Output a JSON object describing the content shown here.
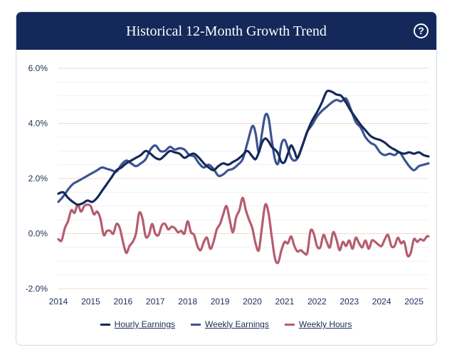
{
  "header": {
    "title": "Historical 12-Month Growth Trend",
    "help_glyph": "?"
  },
  "chart_data": {
    "type": "line",
    "title": "Historical 12-Month Growth Trend",
    "xlabel": "",
    "ylabel": "",
    "x_range": [
      2014,
      2025.45
    ],
    "ylim": [
      -2.0,
      6.0
    ],
    "y_ticks": [
      6.0,
      4.0,
      2.0,
      0.0,
      -2.0
    ],
    "y_tick_labels": [
      "6.0%",
      "4.0%",
      "2.0%",
      "0.0%",
      "-2.0%"
    ],
    "x_ticks": [
      2014,
      2015,
      2016,
      2017,
      2018,
      2019,
      2020,
      2021,
      2022,
      2023,
      2024,
      2025
    ],
    "x_tick_labels": [
      "2014",
      "2015",
      "2016",
      "2017",
      "2018",
      "2019",
      "2020",
      "2021",
      "2022",
      "2023",
      "2024",
      "2025"
    ],
    "grid": "horizontal",
    "legend_position": "bottom",
    "series": [
      {
        "name": "Hourly Earnings",
        "color": "#14295a",
        "x": [
          2014.0,
          2014.15,
          2014.3,
          2014.45,
          2014.6,
          2014.75,
          2014.9,
          2015.05,
          2015.2,
          2015.35,
          2015.5,
          2015.65,
          2015.8,
          2015.95,
          2016.1,
          2016.25,
          2016.4,
          2016.55,
          2016.7,
          2016.85,
          2017.0,
          2017.15,
          2017.3,
          2017.45,
          2017.6,
          2017.75,
          2017.9,
          2018.05,
          2018.2,
          2018.35,
          2018.5,
          2018.65,
          2018.8,
          2018.95,
          2019.1,
          2019.25,
          2019.4,
          2019.55,
          2019.7,
          2019.85,
          2020.0,
          2020.1,
          2020.2,
          2020.3,
          2020.4,
          2020.5,
          2020.6,
          2020.7,
          2020.8,
          2020.9,
          2021.0,
          2021.1,
          2021.2,
          2021.3,
          2021.4,
          2021.55,
          2021.7,
          2021.85,
          2022.0,
          2022.15,
          2022.3,
          2022.45,
          2022.6,
          2022.75,
          2022.9,
          2023.05,
          2023.2,
          2023.35,
          2023.5,
          2023.65,
          2023.8,
          2023.95,
          2024.1,
          2024.25,
          2024.4,
          2024.55,
          2024.7,
          2024.85,
          2025.0,
          2025.15,
          2025.3,
          2025.45
        ],
        "values": [
          1.45,
          1.5,
          1.3,
          1.15,
          1.05,
          1.1,
          1.2,
          1.15,
          1.3,
          1.55,
          1.8,
          2.05,
          2.3,
          2.4,
          2.55,
          2.65,
          2.75,
          2.85,
          3.0,
          2.9,
          2.75,
          2.7,
          2.85,
          3.0,
          2.95,
          2.9,
          2.75,
          2.85,
          2.9,
          2.75,
          2.55,
          2.4,
          2.3,
          2.45,
          2.55,
          2.5,
          2.6,
          2.7,
          2.85,
          3.0,
          2.8,
          2.7,
          2.95,
          3.3,
          3.45,
          3.35,
          3.15,
          3.05,
          2.9,
          2.6,
          2.6,
          2.9,
          3.2,
          3.0,
          2.75,
          3.2,
          3.7,
          4.1,
          4.4,
          4.75,
          5.15,
          5.15,
          5.05,
          5.0,
          4.75,
          4.45,
          4.2,
          3.95,
          3.75,
          3.55,
          3.45,
          3.4,
          3.3,
          3.15,
          3.05,
          2.95,
          2.9,
          2.95,
          2.9,
          2.95,
          2.85,
          2.8
        ]
      },
      {
        "name": "Weekly Earnings",
        "color": "#3c5491",
        "x": [
          2014.0,
          2014.15,
          2014.3,
          2014.45,
          2014.6,
          2014.75,
          2014.9,
          2015.05,
          2015.2,
          2015.35,
          2015.5,
          2015.65,
          2015.8,
          2015.95,
          2016.1,
          2016.25,
          2016.4,
          2016.55,
          2016.7,
          2016.85,
          2017.0,
          2017.15,
          2017.3,
          2017.45,
          2017.6,
          2017.75,
          2017.9,
          2018.05,
          2018.2,
          2018.35,
          2018.5,
          2018.65,
          2018.8,
          2018.95,
          2019.1,
          2019.25,
          2019.4,
          2019.55,
          2019.7,
          2019.85,
          2020.0,
          2020.1,
          2020.2,
          2020.3,
          2020.4,
          2020.5,
          2020.6,
          2020.7,
          2020.8,
          2020.9,
          2021.0,
          2021.1,
          2021.2,
          2021.3,
          2021.4,
          2021.55,
          2021.7,
          2021.85,
          2022.0,
          2022.15,
          2022.3,
          2022.45,
          2022.6,
          2022.75,
          2022.9,
          2023.05,
          2023.2,
          2023.35,
          2023.5,
          2023.65,
          2023.8,
          2023.95,
          2024.1,
          2024.25,
          2024.4,
          2024.55,
          2024.7,
          2024.85,
          2025.0,
          2025.15,
          2025.3,
          2025.45
        ],
        "values": [
          1.15,
          1.35,
          1.6,
          1.8,
          1.9,
          2.0,
          2.1,
          2.2,
          2.3,
          2.4,
          2.35,
          2.3,
          2.25,
          2.5,
          2.65,
          2.55,
          2.45,
          2.55,
          2.7,
          3.05,
          3.2,
          3.0,
          3.0,
          3.15,
          3.05,
          3.1,
          3.05,
          2.85,
          2.8,
          2.55,
          2.4,
          2.5,
          2.35,
          2.1,
          2.15,
          2.3,
          2.35,
          2.5,
          2.7,
          3.3,
          3.9,
          3.65,
          2.95,
          3.65,
          4.3,
          4.2,
          3.4,
          2.7,
          2.55,
          3.25,
          3.4,
          3.1,
          2.75,
          2.65,
          2.75,
          3.2,
          3.7,
          3.95,
          4.25,
          4.45,
          4.6,
          4.75,
          4.85,
          4.8,
          4.9,
          4.5,
          4.05,
          3.85,
          3.5,
          3.3,
          3.2,
          2.95,
          2.85,
          2.9,
          2.85,
          2.95,
          2.7,
          2.45,
          2.3,
          2.45,
          2.5,
          2.55
        ]
      },
      {
        "name": "Weekly Hours",
        "color": "#b65c6f",
        "x": [
          2014.0,
          2014.1,
          2014.2,
          2014.3,
          2014.4,
          2014.5,
          2014.6,
          2014.7,
          2014.8,
          2014.9,
          2015.0,
          2015.1,
          2015.2,
          2015.3,
          2015.4,
          2015.5,
          2015.6,
          2015.7,
          2015.8,
          2015.9,
          2016.0,
          2016.1,
          2016.2,
          2016.3,
          2016.4,
          2016.5,
          2016.6,
          2016.7,
          2016.8,
          2016.9,
          2017.0,
          2017.1,
          2017.2,
          2017.3,
          2017.4,
          2017.5,
          2017.6,
          2017.7,
          2017.8,
          2017.9,
          2018.0,
          2018.1,
          2018.2,
          2018.3,
          2018.4,
          2018.5,
          2018.6,
          2018.7,
          2018.8,
          2018.9,
          2019.0,
          2019.1,
          2019.2,
          2019.3,
          2019.4,
          2019.5,
          2019.6,
          2019.7,
          2019.8,
          2019.9,
          2020.0,
          2020.1,
          2020.2,
          2020.3,
          2020.4,
          2020.5,
          2020.6,
          2020.7,
          2020.8,
          2020.9,
          2021.0,
          2021.1,
          2021.2,
          2021.3,
          2021.4,
          2021.5,
          2021.6,
          2021.7,
          2021.8,
          2021.9,
          2022.0,
          2022.1,
          2022.2,
          2022.3,
          2022.4,
          2022.5,
          2022.6,
          2022.7,
          2022.8,
          2022.9,
          2023.0,
          2023.1,
          2023.2,
          2023.3,
          2023.4,
          2023.5,
          2023.6,
          2023.7,
          2023.8,
          2023.9,
          2024.0,
          2024.1,
          2024.2,
          2024.3,
          2024.4,
          2024.5,
          2024.6,
          2024.7,
          2024.8,
          2024.9,
          2025.0,
          2025.1,
          2025.2,
          2025.3,
          2025.4,
          2025.45
        ],
        "values": [
          -0.2,
          -0.25,
          0.2,
          0.45,
          0.85,
          0.75,
          1.05,
          0.8,
          1.0,
          1.05,
          1.0,
          0.7,
          0.8,
          0.55,
          -0.05,
          0.1,
          0.1,
          0.0,
          0.35,
          0.2,
          -0.3,
          -0.7,
          -0.45,
          -0.3,
          0.0,
          0.75,
          0.55,
          -0.1,
          -0.05,
          0.35,
          0.0,
          -0.05,
          0.3,
          0.35,
          0.15,
          0.25,
          0.2,
          0.05,
          0.1,
          0.0,
          0.45,
          0.05,
          -0.05,
          -0.45,
          -0.6,
          -0.3,
          -0.15,
          -0.55,
          -0.3,
          0.15,
          0.35,
          0.7,
          1.0,
          0.5,
          0.05,
          0.6,
          0.85,
          1.3,
          0.85,
          0.5,
          0.2,
          -0.35,
          -0.6,
          0.25,
          1.05,
          0.75,
          -0.1,
          -0.9,
          -1.05,
          -0.6,
          -0.3,
          -0.35,
          -0.1,
          -0.45,
          -0.65,
          -0.6,
          -0.7,
          -0.7,
          0.1,
          0.0,
          -0.45,
          -0.5,
          -0.05,
          -0.3,
          -0.5,
          0.05,
          -0.2,
          -0.6,
          -0.3,
          -0.45,
          -0.25,
          -0.55,
          -0.15,
          -0.35,
          -0.5,
          -0.25,
          -0.55,
          -0.25,
          -0.3,
          -0.4,
          -0.45,
          -0.2,
          -0.05,
          -0.45,
          -0.45,
          -0.15,
          -0.35,
          -0.3,
          -0.8,
          -0.7,
          -0.2,
          -0.3,
          -0.2,
          -0.25,
          -0.1,
          -0.1
        ]
      }
    ]
  }
}
